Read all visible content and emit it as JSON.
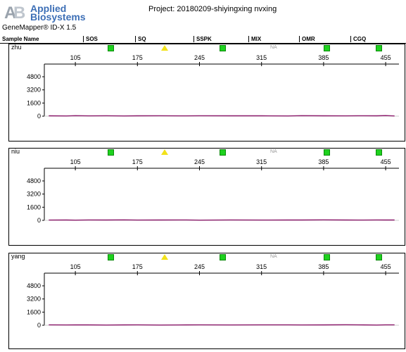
{
  "header": {
    "brand_line1": "Applied",
    "brand_line2": "Biosystems",
    "product": "GeneMapper® ID-X  1.5",
    "project": "Project: 20180209-shiyingxing nvxing"
  },
  "columns": [
    "Sample Name",
    "SOS",
    "SQ",
    "SSPK",
    "MIX",
    "OMR",
    "CGQ"
  ],
  "colors": {
    "pass": "#1ed21e",
    "check": "#f2e21a",
    "trace": "#8b1a6b"
  },
  "markers": {
    "na_label": "NA"
  },
  "samples": [
    {
      "name": "zhu",
      "status": [
        "pass",
        "check",
        "pass",
        "na",
        "pass",
        "pass"
      ]
    },
    {
      "name": "niu",
      "status": [
        "pass",
        "check",
        "pass",
        "na",
        "pass",
        "pass"
      ]
    },
    {
      "name": "yang",
      "status": [
        "pass",
        "check",
        "pass",
        "na",
        "pass",
        "pass"
      ]
    }
  ],
  "chart_data": {
    "type": "line",
    "x_ticks": [
      105,
      175,
      245,
      315,
      385,
      455
    ],
    "y_ticks": [
      0,
      1600,
      3200,
      4800
    ],
    "xlim": [
      70,
      470
    ],
    "ylim": [
      0,
      6000
    ],
    "series": [
      {
        "x": [
          75,
          95,
          105,
          120,
          140,
          160,
          175,
          200,
          230,
          245,
          280,
          315,
          345,
          360,
          385,
          410,
          430,
          445,
          455,
          465
        ],
        "y": [
          40,
          30,
          60,
          35,
          50,
          30,
          45,
          55,
          35,
          50,
          40,
          45,
          30,
          60,
          40,
          35,
          55,
          40,
          70,
          30
        ]
      },
      {
        "x": [
          75,
          95,
          105,
          120,
          140,
          160,
          175,
          200,
          230,
          245,
          280,
          315,
          345,
          360,
          385,
          410,
          430,
          445,
          455,
          465
        ],
        "y": [
          35,
          45,
          30,
          55,
          40,
          60,
          35,
          40,
          50,
          30,
          55,
          35,
          45,
          40,
          60,
          45,
          35,
          55,
          40,
          45
        ]
      },
      {
        "x": [
          75,
          95,
          105,
          120,
          140,
          160,
          175,
          200,
          230,
          245,
          280,
          315,
          345,
          360,
          385,
          410,
          430,
          445,
          455,
          465
        ],
        "y": [
          50,
          35,
          45,
          40,
          30,
          45,
          55,
          30,
          45,
          55,
          35,
          50,
          55,
          35,
          45,
          60,
          40,
          30,
          55,
          50
        ]
      }
    ]
  }
}
